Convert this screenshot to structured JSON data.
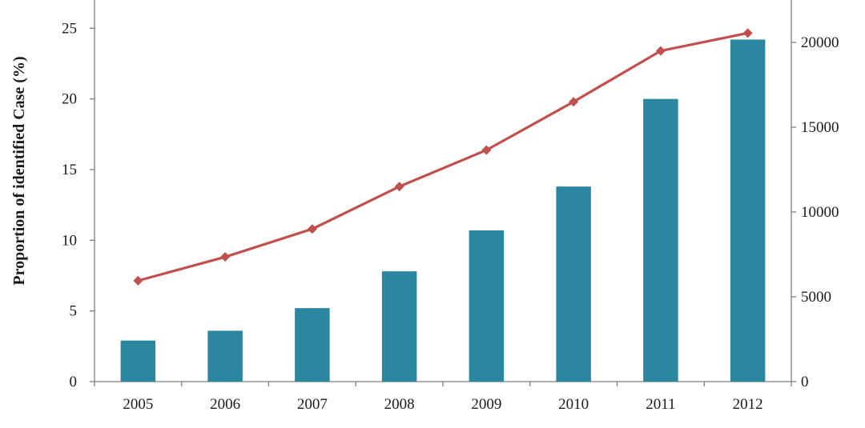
{
  "chart_data": {
    "type": "bar",
    "title": "",
    "xlabel": "",
    "ylabel": "Proportion of identified Case (%)",
    "y2label": "",
    "categories": [
      "2005",
      "2006",
      "2007",
      "2008",
      "2009",
      "2010",
      "2011",
      "2012"
    ],
    "ylim": [
      0,
      27
    ],
    "y2lim": [
      0,
      22500
    ],
    "yticks": [
      "0",
      "5",
      "10",
      "15",
      "20",
      "25"
    ],
    "y2ticks": [
      "0",
      "5000",
      "10000",
      "15000",
      "20000"
    ],
    "grid": false,
    "series": [
      {
        "type": "bar",
        "axis": "left",
        "color": "#2b86a0",
        "values": [
          2.9,
          3.6,
          5.2,
          7.8,
          10.7,
          13.8,
          20.0,
          24.2
        ]
      },
      {
        "type": "line",
        "axis": "right",
        "color": "#c0504d",
        "marker": "diamond",
        "values": [
          5950,
          7350,
          9000,
          11500,
          13650,
          16500,
          19500,
          20550
        ]
      }
    ]
  }
}
